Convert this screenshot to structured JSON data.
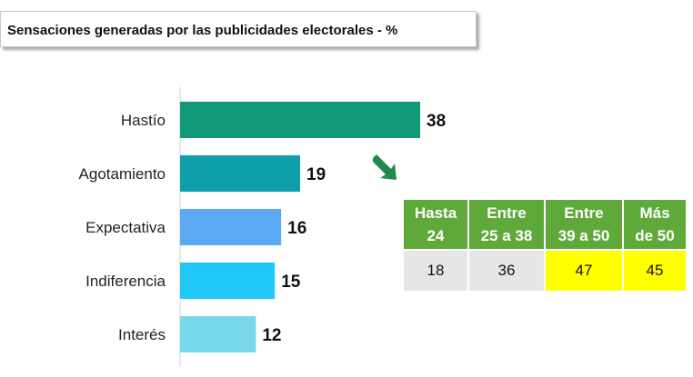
{
  "title": "Sensaciones generadas por las publicidades electorales - %",
  "chart_data": {
    "type": "bar",
    "orientation": "horizontal",
    "title": "Sensaciones generadas por las publicidades electorales - %",
    "categories": [
      "Hastío",
      "Agotamiento",
      "Expectativa",
      "Indiferencia",
      "Interés"
    ],
    "values": [
      38,
      19,
      16,
      15,
      12
    ],
    "bar_colors": [
      "#12997a",
      "#0f9fa8",
      "#5aa9f2",
      "#22c8f5",
      "#78d8ea"
    ],
    "xlim": [
      0,
      38
    ],
    "grid": false,
    "legend": "none"
  },
  "age_table": {
    "header_color": "#5fa93b",
    "highlight_color": "#ffff00",
    "base_cell_color": "#e6e6e6",
    "headers": [
      "Hasta\n24",
      "Entre\n25 a 38",
      "Entre\n39 a 50",
      "Más\nde 50"
    ],
    "values": [
      "18",
      "36",
      "47",
      "45"
    ],
    "highlighted": [
      false,
      false,
      true,
      true
    ]
  },
  "arrow_color": "#1f8a4a"
}
